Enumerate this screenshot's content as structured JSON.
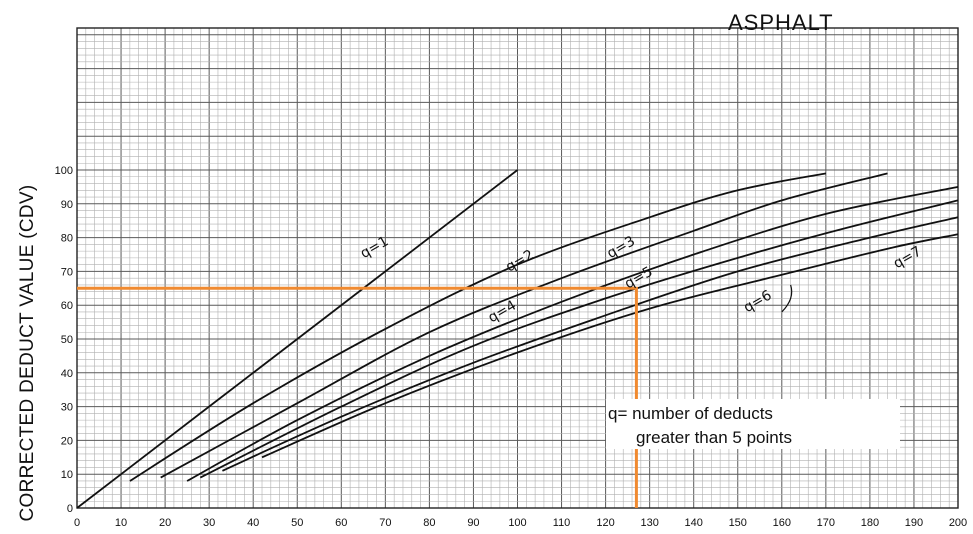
{
  "chart_data": {
    "type": "line",
    "title": "ASPHALT",
    "ylabel": "CORRECTED DEDUCT VALUE (CDV)",
    "xlabel": "",
    "xlim": [
      0,
      200
    ],
    "ylim": [
      0,
      100
    ],
    "x_ticks": [
      0,
      10,
      20,
      30,
      40,
      50,
      60,
      70,
      80,
      90,
      100,
      110,
      120,
      130,
      140,
      150,
      160,
      170,
      180,
      190,
      200
    ],
    "y_ticks": [
      0,
      10,
      20,
      30,
      40,
      50,
      60,
      70,
      80,
      90,
      100
    ],
    "x_tick_labels": [
      "0",
      "10",
      "20",
      "30",
      "40",
      "50",
      "60",
      "70",
      "80",
      "90",
      "100",
      "110",
      "120",
      "130",
      "140",
      "150",
      "160",
      "170",
      "180",
      "190",
      "200"
    ],
    "y_tick_labels": [
      "0",
      "10",
      "20",
      "30",
      "40",
      "50",
      "60",
      "70",
      "80",
      "90",
      "100"
    ],
    "grid": true,
    "series": [
      {
        "name": "q=1",
        "label_at": [
          68,
          76
        ],
        "points": [
          [
            0,
            0
          ],
          [
            50,
            50
          ],
          [
            100,
            100
          ]
        ]
      },
      {
        "name": "q=2",
        "label_at": [
          101,
          72
        ],
        "points": [
          [
            12,
            8
          ],
          [
            40,
            31
          ],
          [
            70,
            53
          ],
          [
            100,
            72
          ],
          [
            130,
            86
          ],
          [
            150,
            94
          ],
          [
            170,
            99
          ]
        ]
      },
      {
        "name": "q=3",
        "label_at": [
          124,
          76
        ],
        "points": [
          [
            19,
            9
          ],
          [
            50,
            31
          ],
          [
            80,
            52
          ],
          [
            110,
            68
          ],
          [
            140,
            82
          ],
          [
            160,
            91
          ],
          [
            184,
            99
          ]
        ]
      },
      {
        "name": "q=4",
        "label_at": [
          97,
          57
        ],
        "points": [
          [
            25,
            8
          ],
          [
            50,
            26
          ],
          [
            80,
            45
          ],
          [
            110,
            61
          ],
          [
            140,
            75
          ],
          [
            170,
            87
          ],
          [
            200,
            95
          ]
        ]
      },
      {
        "name": "q=5",
        "label_at": [
          128,
          67
        ],
        "points": [
          [
            28,
            9
          ],
          [
            60,
            30
          ],
          [
            90,
            48
          ],
          [
            120,
            62
          ],
          [
            150,
            74
          ],
          [
            175,
            83
          ],
          [
            200,
            91
          ]
        ]
      },
      {
        "name": "q=6",
        "label_at": [
          155,
          60
        ],
        "points": [
          [
            33,
            11
          ],
          [
            60,
            27
          ],
          [
            90,
            43
          ],
          [
            120,
            57
          ],
          [
            150,
            70
          ],
          [
            180,
            80
          ],
          [
            200,
            86
          ]
        ]
      },
      {
        "name": "q=7",
        "label_at": [
          189,
          73
        ],
        "points": [
          [
            42,
            15
          ],
          [
            70,
            31
          ],
          [
            100,
            46
          ],
          [
            130,
            59
          ],
          [
            160,
            69
          ],
          [
            185,
            77
          ],
          [
            200,
            81
          ]
        ]
      }
    ],
    "annotation_lines": [
      {
        "color": "#f08a30",
        "points": [
          [
            0,
            65
          ],
          [
            127,
            65
          ],
          [
            127,
            0
          ]
        ]
      }
    ],
    "annotations": [
      "q= number of deducts",
      "greater than 5 points"
    ]
  },
  "colors": {
    "grid_major": "#5a5a5a",
    "grid_minor": "#b0b0b0",
    "curve": "#111111",
    "reference": "#f08a30"
  }
}
